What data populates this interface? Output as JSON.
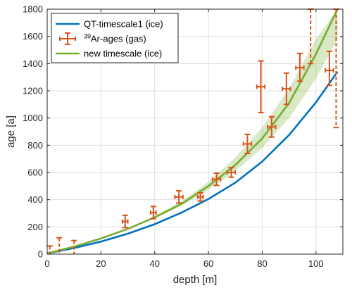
{
  "chart_data": {
    "type": "line",
    "xlabel": "depth [m]",
    "ylabel": "age [a]",
    "xlim": [
      0,
      110
    ],
    "ylim": [
      0,
      1800
    ],
    "xticks": [
      0,
      20,
      40,
      60,
      80,
      100
    ],
    "yticks": [
      0,
      200,
      400,
      600,
      800,
      1000,
      1200,
      1400,
      1600,
      1800
    ],
    "grid": true,
    "legend_position": "top-left",
    "series": [
      {
        "name": "QT-timescale1 (ice)",
        "kind": "line",
        "color": "#0072bd",
        "x": [
          0,
          10,
          20,
          30,
          40,
          50,
          60,
          70,
          80,
          90,
          100,
          108
        ],
        "y": [
          5,
          45,
          92,
          150,
          220,
          305,
          405,
          525,
          680,
          875,
          1115,
          1340
        ]
      },
      {
        "name": "new timescale (ice)",
        "kind": "line",
        "color": "#77ac30",
        "x": [
          0,
          10,
          20,
          30,
          40,
          50,
          60,
          70,
          80,
          90,
          100,
          108
        ],
        "y": [
          5,
          55,
          115,
          185,
          270,
          370,
          500,
          655,
          850,
          1110,
          1470,
          1830
        ]
      },
      {
        "name": "new timescale uncertainty band",
        "kind": "band",
        "color": "#77ac30",
        "x": [
          30,
          40,
          50,
          60,
          70,
          80,
          90,
          100,
          108
        ],
        "lower": [
          180,
          262,
          355,
          470,
          610,
          780,
          1000,
          1290,
          1580
        ],
        "upper": [
          190,
          280,
          388,
          530,
          710,
          930,
          1215,
          1580,
          1900
        ]
      },
      {
        "name": "³⁹Ar-ages (gas)",
        "name_markup": {
          "sup": "39",
          "rest": "Ar-ages (gas)"
        },
        "kind": "errorbar",
        "color": "#d95319",
        "points": [
          {
            "x": 1,
            "y": 0,
            "xerr": 1,
            "ylow": 0,
            "yhigh": 60,
            "dashed": true
          },
          {
            "x": 4.5,
            "y": 0,
            "xerr": 1.5,
            "ylow": 0,
            "yhigh": 120,
            "dashed": true
          },
          {
            "x": 10,
            "y": 0,
            "xerr": 1.5,
            "ylow": 0,
            "yhigh": 100,
            "dashed": true
          },
          {
            "x": 29,
            "y": 240,
            "xerr": 1,
            "ylow": 195,
            "yhigh": 285
          },
          {
            "x": 39.5,
            "y": 305,
            "xerr": 1,
            "ylow": 260,
            "yhigh": 350
          },
          {
            "x": 49,
            "y": 420,
            "xerr": 1.5,
            "ylow": 375,
            "yhigh": 465
          },
          {
            "x": 57,
            "y": 420,
            "xerr": 1,
            "ylow": 390,
            "yhigh": 450
          },
          {
            "x": 63,
            "y": 550,
            "xerr": 1.5,
            "ylow": 505,
            "yhigh": 595
          },
          {
            "x": 68.5,
            "y": 600,
            "xerr": 1.5,
            "ylow": 565,
            "yhigh": 635
          },
          {
            "x": 74.5,
            "y": 810,
            "xerr": 1.5,
            "ylow": 740,
            "yhigh": 880
          },
          {
            "x": 79.5,
            "y": 1230,
            "xerr": 1.5,
            "ylow": 1040,
            "yhigh": 1420
          },
          {
            "x": 83.5,
            "y": 935,
            "xerr": 1.5,
            "ylow": 860,
            "yhigh": 1010
          },
          {
            "x": 89,
            "y": 1215,
            "xerr": 1.5,
            "ylow": 1100,
            "yhigh": 1330
          },
          {
            "x": 94,
            "y": 1370,
            "xerr": 1.5,
            "ylow": 1270,
            "yhigh": 1475
          },
          {
            "x": 98,
            "y": 1800,
            "xerr": 0.5,
            "ylow": 1400,
            "yhigh": 1800,
            "dashed": true
          },
          {
            "x": 105,
            "y": 1350,
            "xerr": 1.5,
            "ylow": 1240,
            "yhigh": 1490
          },
          {
            "x": 107.5,
            "y": 1350,
            "xerr": 0,
            "ylow": 930,
            "yhigh": 1800,
            "dashed": true
          }
        ]
      }
    ]
  }
}
